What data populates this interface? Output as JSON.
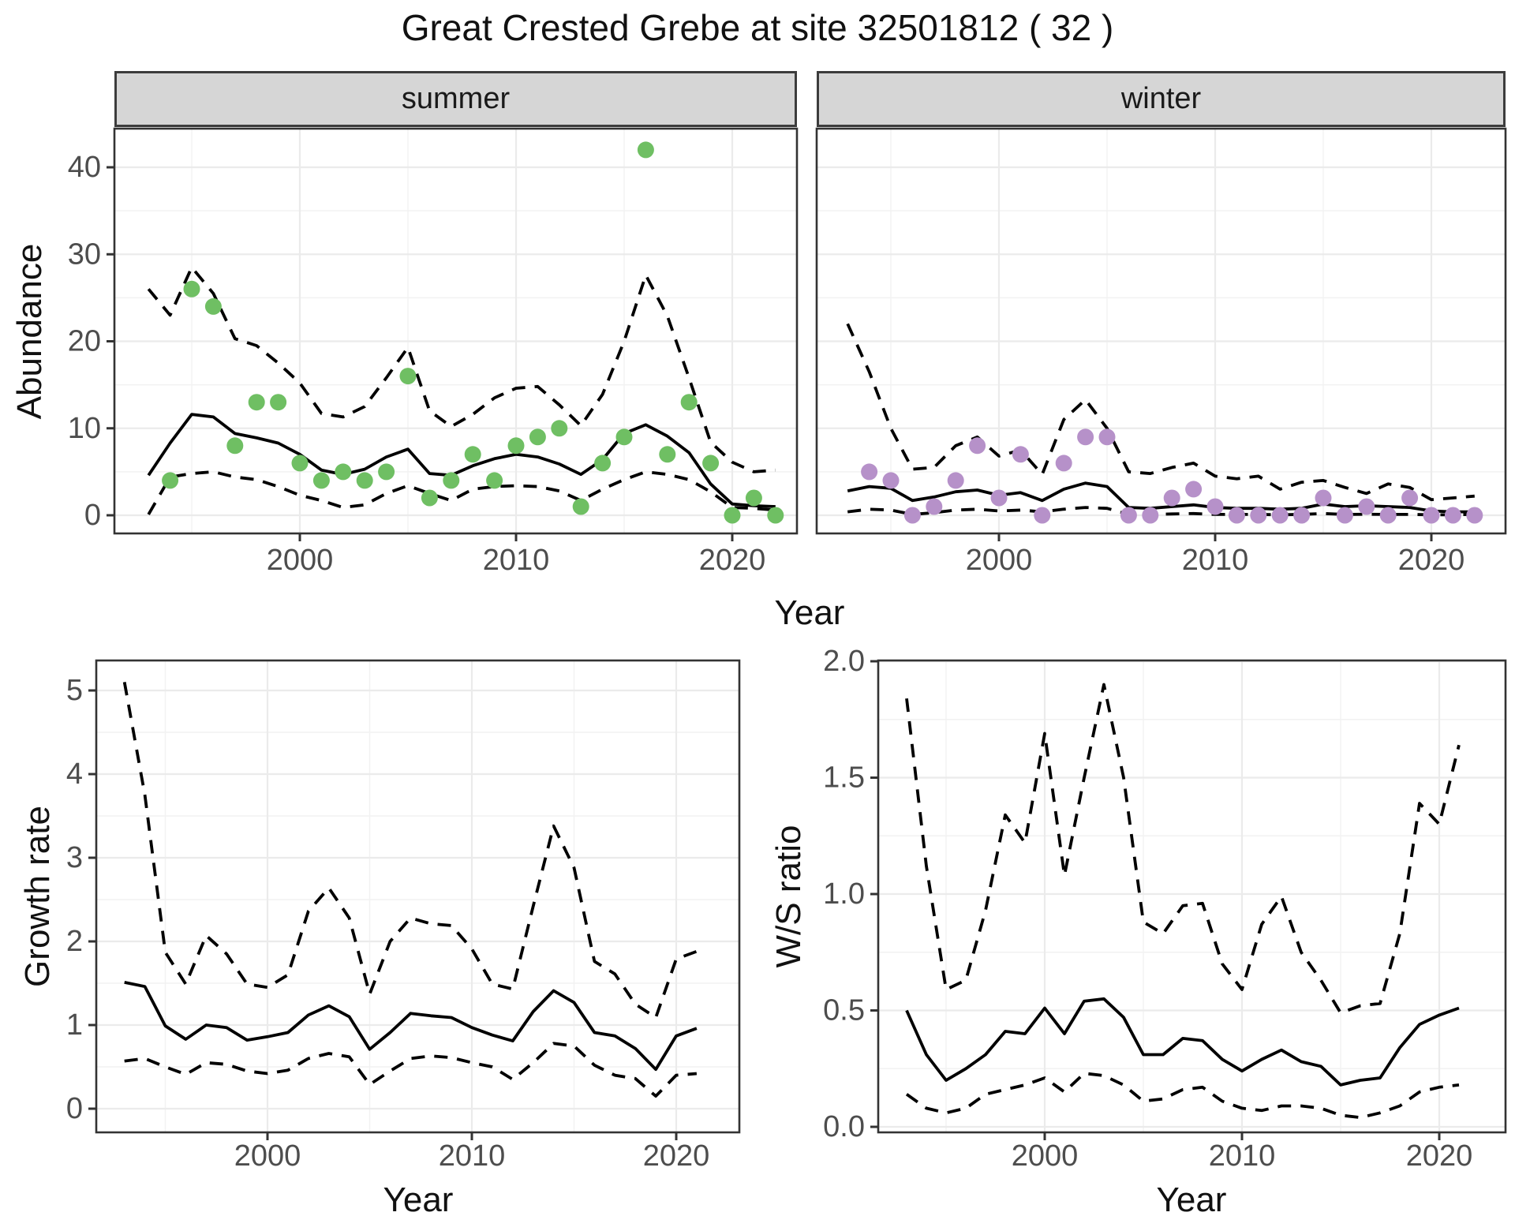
{
  "figure": {
    "title": "Great Crested Grebe at site 32501812 ( 32 )"
  },
  "colors": {
    "summer_points": "#6FBF63",
    "winter_points": "#B691C9",
    "line": "#000000",
    "grid_major": "#EBEBEB",
    "grid_minor": "#F2F2F2",
    "panel_border": "#333333",
    "tick_text": "#4D4D4D",
    "strip_bg": "#D6D6D6",
    "strip_text": "#1A1A1A"
  },
  "chart_data": [
    {
      "id": "summer",
      "type": "line",
      "facet_label": "summer",
      "xlabel": "Year",
      "ylabel": "Abundance",
      "x_ticks": {
        "values": [
          2000,
          2010,
          2020
        ],
        "labels": [
          "2000",
          "2010",
          "2020"
        ]
      },
      "x_minor": [
        1995,
        2005,
        2015
      ],
      "y_ticks": {
        "values": [
          0,
          10,
          20,
          30,
          40
        ],
        "labels": [
          "0",
          "10",
          "20",
          "30",
          "40"
        ]
      },
      "y_minor": [
        5,
        15,
        25,
        35
      ],
      "x_range": [
        1991.5,
        2023.5
      ],
      "y_range": [
        -2.1,
        44.4
      ],
      "grid": true,
      "legend": "none",
      "years_fit": [
        1993,
        1994,
        1995,
        1996,
        1997,
        1998,
        1999,
        2000,
        2001,
        2002,
        2003,
        2004,
        2005,
        2006,
        2007,
        2008,
        2009,
        2010,
        2011,
        2012,
        2013,
        2014,
        2015,
        2016,
        2017,
        2018,
        2019,
        2020,
        2021,
        2022
      ],
      "fit": [
        4.6,
        8.3,
        11.6,
        11.3,
        9.4,
        8.9,
        8.3,
        7.0,
        5.2,
        4.7,
        5.3,
        6.7,
        7.6,
        4.8,
        4.6,
        5.7,
        6.5,
        7.0,
        6.7,
        5.9,
        4.7,
        6.4,
        9.4,
        10.4,
        9.1,
        7.2,
        3.6,
        1.3,
        1.1,
        1.0
      ],
      "upper": [
        26,
        23,
        28.5,
        25.5,
        20.3,
        19.5,
        17.5,
        15.2,
        11.7,
        11.3,
        12.5,
        15.8,
        19.3,
        12.0,
        10.2,
        11.6,
        13.5,
        14.6,
        14.8,
        12.7,
        10.3,
        13.9,
        20.0,
        27.6,
        22.9,
        15.8,
        8.4,
        6.1,
        5.0,
        5.2
      ],
      "lower": [
        0.1,
        4.4,
        4.8,
        5.0,
        4.4,
        4.1,
        3.3,
        2.3,
        1.7,
        0.9,
        1.2,
        2.5,
        3.4,
        2.5,
        1.7,
        3.0,
        3.3,
        3.4,
        3.3,
        2.8,
        1.7,
        3.0,
        4.1,
        5.0,
        4.7,
        4.1,
        2.7,
        0.9,
        0.8,
        0.6
      ],
      "points": {
        "years": [
          1994,
          1995,
          1996,
          1997,
          1998,
          1999,
          2000,
          2001,
          2002,
          2003,
          2004,
          2005,
          2006,
          2007,
          2008,
          2009,
          2010,
          2011,
          2012,
          2013,
          2014,
          2015,
          2016,
          2017,
          2018,
          2019,
          2020,
          2021,
          2022
        ],
        "values": [
          4,
          26,
          24,
          8,
          13,
          13,
          6,
          4,
          5,
          4,
          5,
          16,
          2,
          4,
          7,
          4,
          8,
          9,
          10,
          1,
          6,
          9,
          42,
          7,
          13,
          6,
          0,
          2,
          0
        ]
      },
      "point_color": "#6FBF63"
    },
    {
      "id": "winter",
      "type": "line",
      "facet_label": "winter",
      "xlabel": "Year",
      "ylabel": "Abundance",
      "x_ticks": {
        "values": [
          2000,
          2010,
          2020
        ],
        "labels": [
          "2000",
          "2010",
          "2020"
        ]
      },
      "x_minor": [
        1995,
        2005,
        2015
      ],
      "y_ticks": {
        "values": [
          0,
          10,
          20,
          30,
          40
        ],
        "labels": [
          "0",
          "10",
          "20",
          "30",
          "40"
        ]
      },
      "y_minor": [
        5,
        15,
        25,
        35
      ],
      "x_range": [
        1991.5,
        2023.5
      ],
      "y_range": [
        -2.1,
        44.4
      ],
      "grid": true,
      "legend": "none",
      "years_fit": [
        1993,
        1994,
        1995,
        1996,
        1997,
        1998,
        1999,
        2000,
        2001,
        2002,
        2003,
        2004,
        2005,
        2006,
        2007,
        2008,
        2009,
        2010,
        2011,
        2012,
        2013,
        2014,
        2015,
        2016,
        2017,
        2018,
        2019,
        2020,
        2021,
        2022
      ],
      "fit": [
        2.8,
        3.3,
        3.1,
        1.7,
        2.1,
        2.7,
        2.9,
        2.3,
        2.6,
        1.7,
        3.0,
        3.7,
        3.3,
        0.9,
        0.8,
        1.0,
        1.2,
        0.9,
        0.8,
        0.8,
        0.7,
        0.8,
        1.3,
        1.0,
        1.1,
        1.0,
        0.9,
        0.5,
        0.4,
        0.4
      ],
      "upper": [
        22,
        16.5,
        10,
        5.3,
        5.5,
        8,
        9,
        6.8,
        7.5,
        4.7,
        11,
        13.3,
        10,
        5.0,
        4.8,
        5.5,
        6.0,
        4.5,
        4.2,
        4.5,
        3.0,
        3.8,
        4.0,
        3.2,
        2.5,
        3.6,
        3.2,
        1.8,
        2.0,
        2.2
      ],
      "lower": [
        0.4,
        0.7,
        0.6,
        0.1,
        0.3,
        0.6,
        0.7,
        0.5,
        0.6,
        0.4,
        0.7,
        0.9,
        0.8,
        0.1,
        0.1,
        0.15,
        0.2,
        0.1,
        0.1,
        0.1,
        0.05,
        0.1,
        0.2,
        0.1,
        0.12,
        0.1,
        0.1,
        0.05,
        0.05,
        0.1
      ],
      "points": {
        "years": [
          1994,
          1995,
          1996,
          1997,
          1998,
          1999,
          2000,
          2001,
          2002,
          2003,
          2004,
          2005,
          2006,
          2007,
          2008,
          2009,
          2010,
          2011,
          2012,
          2013,
          2014,
          2015,
          2016,
          2017,
          2018,
          2019,
          2020,
          2021,
          2022
        ],
        "values": [
          5,
          4,
          0,
          1,
          4,
          8,
          2,
          7,
          0,
          6,
          9,
          9,
          0,
          0,
          2,
          3,
          1,
          0,
          0,
          0,
          0,
          2,
          0,
          1,
          0,
          2,
          0,
          0,
          0
        ]
      },
      "point_color": "#B691C9"
    },
    {
      "id": "growth",
      "type": "line",
      "facet_label": "",
      "xlabel": "Year",
      "ylabel": "Growth rate",
      "x_ticks": {
        "values": [
          2000,
          2010,
          2020
        ],
        "labels": [
          "2000",
          "2010",
          "2020"
        ]
      },
      "x_minor": [
        1995,
        2005,
        2015
      ],
      "y_ticks": {
        "values": [
          0,
          1,
          2,
          3,
          4,
          5
        ],
        "labels": [
          "0",
          "1",
          "2",
          "3",
          "4",
          "5"
        ]
      },
      "y_minor": [
        0.5,
        1.5,
        2.5,
        3.5,
        4.5
      ],
      "x_range": [
        1991.5,
        2023.5
      ],
      "y_range": [
        -0.28,
        5.64
      ],
      "grid": true,
      "legend": "none",
      "years_fit": [
        1993,
        1994,
        1995,
        1996,
        1997,
        1998,
        1999,
        2000,
        2001,
        2002,
        2003,
        2004,
        2005,
        2006,
        2007,
        2008,
        2009,
        2010,
        2011,
        2012,
        2013,
        2014,
        2015,
        2016,
        2017,
        2018,
        2019,
        2020,
        2021
      ],
      "fit": [
        1.51,
        1.46,
        0.99,
        0.83,
        1.0,
        0.97,
        0.82,
        0.86,
        0.91,
        1.12,
        1.23,
        1.1,
        0.71,
        0.91,
        1.14,
        1.11,
        1.09,
        0.97,
        0.88,
        0.81,
        1.16,
        1.41,
        1.27,
        0.91,
        0.87,
        0.72,
        0.47,
        0.87,
        0.96
      ],
      "upper": [
        5.1,
        3.75,
        1.87,
        1.49,
        2.07,
        1.85,
        1.49,
        1.45,
        1.6,
        2.36,
        2.64,
        2.28,
        1.37,
        2.0,
        2.28,
        2.21,
        2.19,
        1.91,
        1.49,
        1.43,
        2.42,
        3.38,
        2.88,
        1.76,
        1.61,
        1.25,
        1.09,
        1.79,
        1.88
      ],
      "lower": [
        0.57,
        0.6,
        0.5,
        0.41,
        0.55,
        0.53,
        0.45,
        0.42,
        0.46,
        0.6,
        0.66,
        0.62,
        0.29,
        0.45,
        0.6,
        0.63,
        0.61,
        0.55,
        0.5,
        0.35,
        0.55,
        0.78,
        0.75,
        0.52,
        0.4,
        0.36,
        0.15,
        0.4,
        0.42
      ]
    },
    {
      "id": "ws",
      "type": "line",
      "facet_label": "",
      "xlabel": "Year",
      "ylabel": "W/S ratio",
      "x_ticks": {
        "values": [
          2000,
          2010,
          2020
        ],
        "labels": [
          "2000",
          "2010",
          "2020"
        ]
      },
      "x_minor": [
        1995,
        2005,
        2015
      ],
      "y_ticks": {
        "values": [
          0.0,
          0.5,
          1.0,
          1.5,
          2.0
        ],
        "labels": [
          "0.0",
          "0.5",
          "1.0",
          "1.5",
          "2.0"
        ]
      },
      "y_minor": [
        0.25,
        0.75,
        1.25,
        1.75
      ],
      "x_range": [
        1991.5,
        2023.5
      ],
      "y_range": [
        -0.02,
        2.0
      ],
      "grid": true,
      "legend": "none",
      "years_fit": [
        1993,
        1994,
        1995,
        1996,
        1997,
        1998,
        1999,
        2000,
        2001,
        2002,
        2003,
        2004,
        2005,
        2006,
        2007,
        2008,
        2009,
        2010,
        2011,
        2012,
        2013,
        2014,
        2015,
        2016,
        2017,
        2018,
        2019,
        2020,
        2021
      ],
      "fit": [
        0.5,
        0.31,
        0.2,
        0.25,
        0.31,
        0.41,
        0.4,
        0.51,
        0.4,
        0.54,
        0.55,
        0.47,
        0.31,
        0.31,
        0.38,
        0.37,
        0.29,
        0.24,
        0.29,
        0.33,
        0.28,
        0.26,
        0.18,
        0.2,
        0.21,
        0.34,
        0.44,
        0.48,
        0.51
      ],
      "upper": [
        1.84,
        1.12,
        0.59,
        0.63,
        0.93,
        1.34,
        1.22,
        1.69,
        1.08,
        1.5,
        1.9,
        1.5,
        0.88,
        0.83,
        0.95,
        0.96,
        0.7,
        0.59,
        0.87,
        0.99,
        0.75,
        0.63,
        0.49,
        0.52,
        0.53,
        0.83,
        1.39,
        1.3,
        1.64
      ],
      "lower": [
        0.14,
        0.08,
        0.06,
        0.08,
        0.14,
        0.16,
        0.18,
        0.21,
        0.15,
        0.23,
        0.22,
        0.18,
        0.11,
        0.12,
        0.16,
        0.17,
        0.11,
        0.08,
        0.07,
        0.09,
        0.09,
        0.08,
        0.05,
        0.04,
        0.06,
        0.09,
        0.15,
        0.17,
        0.18
      ]
    }
  ]
}
